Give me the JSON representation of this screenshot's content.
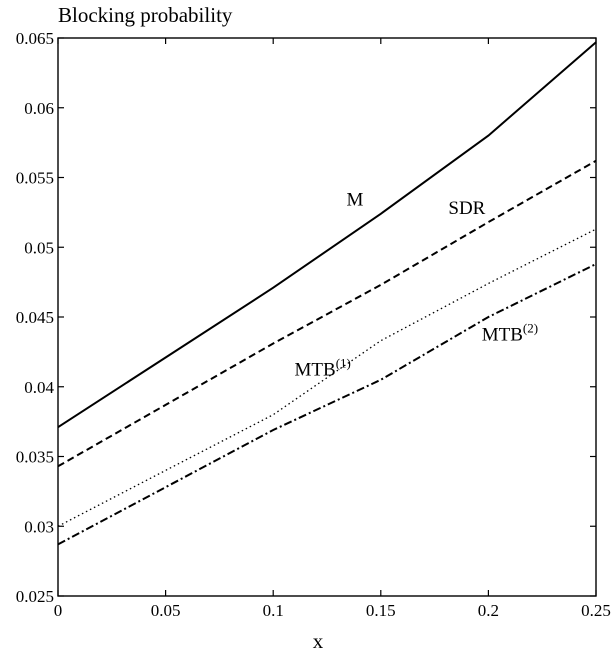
{
  "chart_data": {
    "type": "line",
    "title": "Blocking probability",
    "xlabel": "x",
    "ylabel": "",
    "xlim": [
      0,
      0.25
    ],
    "ylim": [
      0.025,
      0.065
    ],
    "x_ticks": [
      "0",
      "0.05",
      "0.1",
      "0.15",
      "0.2",
      "0.25"
    ],
    "y_ticks": [
      "0.025",
      "0.03",
      "0.035",
      "0.04",
      "0.045",
      "0.05",
      "0.055",
      "0.06",
      "0.065"
    ],
    "grid": false,
    "legend": "none",
    "series": [
      {
        "name": "M",
        "label_base": "M",
        "label_sup": "",
        "style": "solid",
        "x": [
          0,
          0.05,
          0.1,
          0.15,
          0.2,
          0.25
        ],
        "y": [
          0.0371,
          0.0421,
          0.0471,
          0.0524,
          0.058,
          0.0647
        ]
      },
      {
        "name": "SDR",
        "label_base": "SDR",
        "label_sup": "",
        "style": "dashed",
        "x": [
          0,
          0.05,
          0.1,
          0.15,
          0.2,
          0.25
        ],
        "y": [
          0.0343,
          0.0387,
          0.0431,
          0.0473,
          0.0518,
          0.0562
        ]
      },
      {
        "name": "MTB(1)",
        "label_base": "MTB",
        "label_sup": "(1)",
        "style": "dotted",
        "x": [
          0,
          0.05,
          0.1,
          0.15,
          0.2,
          0.25
        ],
        "y": [
          0.03,
          0.034,
          0.038,
          0.0433,
          0.0474,
          0.0513
        ]
      },
      {
        "name": "MTB(2)",
        "label_base": "MTB",
        "label_sup": "(2)",
        "style": "dashdot",
        "x": [
          0,
          0.05,
          0.1,
          0.15,
          0.2,
          0.25
        ],
        "y": [
          0.0287,
          0.0328,
          0.0369,
          0.0405,
          0.045,
          0.0488
        ]
      }
    ]
  }
}
